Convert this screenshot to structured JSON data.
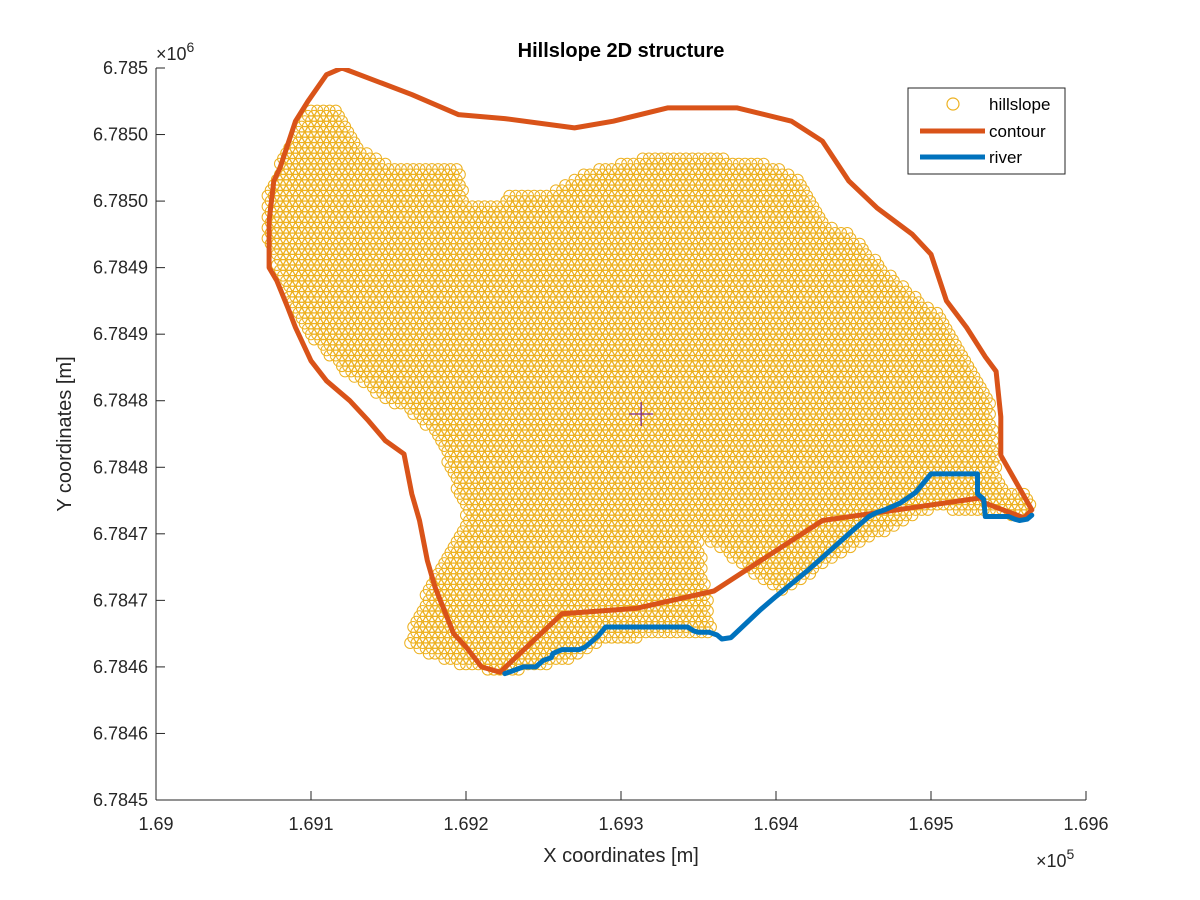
{
  "chart_data": {
    "type": "scatter",
    "title": "Hillslope 2D structure",
    "xlabel": "X coordinates [m]",
    "ylabel": "Y coordinates [m]",
    "x_exponent_label": "×10",
    "x_exponent": "5",
    "y_exponent_label": "×10",
    "y_exponent": "6",
    "xlim": [
      169000,
      169600
    ],
    "ylim": [
      6784500,
      6785050
    ],
    "xticks": [
      169000,
      169100,
      169200,
      169300,
      169400,
      169500,
      169600
    ],
    "xtick_labels": [
      "1.69",
      "1.691",
      "1.692",
      "1.693",
      "1.694",
      "1.695",
      "1.696"
    ],
    "yticks": [
      6784500,
      6784550,
      6784600,
      6784650,
      6784700,
      6784750,
      6784800,
      6784850,
      6784900,
      6784950,
      6785000,
      6785050
    ],
    "ytick_labels": [
      "6.7845",
      "6.7846",
      "6.7846",
      "6.7847",
      "6.7847",
      "6.7848",
      "6.7848",
      "6.7849",
      "6.7849",
      "6.7850",
      "6.7850",
      "6.785"
    ],
    "grid": false,
    "legend_position": "top-right",
    "colors": {
      "hillslope": "#EDB120",
      "contour": "#D95319",
      "river": "#0072BD",
      "centroid": "#7E2F8E",
      "axes": "#262626"
    },
    "series": [
      {
        "name": "hillslope",
        "kind": "markers",
        "marker": "circle",
        "spacing": 4,
        "region_polygon": [
          [
            169072,
            6784955
          ],
          [
            169072,
            6784922
          ],
          [
            169078,
            6784900
          ],
          [
            169083,
            6784884
          ],
          [
            169092,
            6784860
          ],
          [
            169106,
            6784840
          ],
          [
            169125,
            6784818
          ],
          [
            169146,
            6784803
          ],
          [
            169162,
            6784793
          ],
          [
            169175,
            6784780
          ],
          [
            169187,
            6784757
          ],
          [
            169196,
            6784726
          ],
          [
            169200,
            6784711
          ],
          [
            169196,
            6784701
          ],
          [
            169180,
            6784670
          ],
          [
            169168,
            6784638
          ],
          [
            169162,
            6784617
          ],
          [
            169174,
            6784610
          ],
          [
            169200,
            6784600
          ],
          [
            169225,
            6784596
          ],
          [
            169246,
            6784600
          ],
          [
            169268,
            6784605
          ],
          [
            169290,
            6784621
          ],
          [
            169360,
            6784624
          ],
          [
            169401,
            6784653
          ],
          [
            169440,
            6784684
          ],
          [
            169500,
            6784719
          ],
          [
            169535,
            6784716
          ],
          [
            169549,
            6784714
          ],
          [
            169564,
            6784714
          ],
          [
            169565,
            6784722
          ],
          [
            169561,
            6784730
          ],
          [
            169549,
            6784733
          ],
          [
            169544,
            6784745
          ],
          [
            169540,
            6784783
          ],
          [
            169538,
            6784800
          ],
          [
            169528,
            6784819
          ],
          [
            169518,
            6784845
          ],
          [
            169508,
            6784864
          ],
          [
            169485,
            6784883
          ],
          [
            169470,
            6784900
          ],
          [
            169447,
            6784926
          ],
          [
            169430,
            6784935
          ],
          [
            169418,
            6784965
          ],
          [
            169400,
            6784977
          ],
          [
            169340,
            6784986
          ],
          [
            169300,
            6784980
          ],
          [
            169270,
            6784968
          ],
          [
            169250,
            6784955
          ],
          [
            169227,
            6784956
          ],
          [
            169220,
            6784947
          ],
          [
            169200,
            6784950
          ],
          [
            169196,
            6784975
          ],
          [
            169173,
            6784978
          ],
          [
            169150,
            6784977
          ],
          [
            169130,
            6784992
          ],
          [
            169120,
            6785018
          ],
          [
            169100,
            6785022
          ],
          [
            169087,
            6785000
          ],
          [
            169080,
            6784980
          ]
        ],
        "excluded_polygon": [
          [
            169350,
            6784700
          ],
          [
            169385,
            6784670
          ],
          [
            169421,
            6784642
          ],
          [
            169475,
            6784697
          ],
          [
            169493,
            6784712
          ],
          [
            169500,
            6784711
          ],
          [
            169510,
            6784700
          ],
          [
            169530,
            6784700
          ],
          [
            169537,
            6784688
          ],
          [
            169540,
            6784680
          ],
          [
            169562,
            6784676
          ],
          [
            169570,
            6784660
          ],
          [
            169540,
            6784652
          ],
          [
            169430,
            6784650
          ],
          [
            169360,
            6784620
          ]
        ],
        "excluded_polygon_2": [
          [
            169115,
            6785020
          ],
          [
            169130,
            6784995
          ],
          [
            169150,
            6784982
          ],
          [
            169196,
            6784982
          ],
          [
            169223,
            6784962
          ],
          [
            169260,
            6784962
          ],
          [
            169278,
            6784972
          ],
          [
            169340,
            6784992
          ],
          [
            169400,
            6784992
          ],
          [
            169419,
            6784978
          ],
          [
            169420,
            6785010
          ],
          [
            169330,
            6785012
          ],
          [
            169270,
            6785000
          ],
          [
            169196,
            6785010
          ],
          [
            169125,
            6785032
          ]
        ]
      },
      {
        "name": "contour",
        "kind": "line",
        "x": [
          169222,
          169210,
          169200,
          169192,
          169180,
          169175,
          169170,
          169165,
          169160,
          169148,
          169137,
          169125,
          169110,
          169100,
          169090,
          169085,
          169078,
          169073,
          169073,
          169076,
          169080,
          169090,
          169098,
          169110,
          169120,
          169165,
          169195,
          169225,
          169270,
          169295,
          169330,
          169375,
          169410,
          169430,
          169447,
          169465,
          169488,
          169500,
          169510,
          169523,
          169535,
          169542,
          169545,
          169545,
          169565,
          169560,
          169535,
          169532,
          169430,
          169360,
          169310,
          169262,
          169222
        ],
        "y": [
          6784596,
          6784600,
          6784615,
          6784625,
          6784660,
          6784680,
          6784710,
          6784730,
          6784760,
          6784770,
          6784785,
          6784800,
          6784815,
          6784830,
          6784855,
          6784870,
          6784890,
          6784900,
          6784935,
          6784965,
          6784975,
          6785010,
          6785025,
          6785045,
          6785050,
          6785030,
          6785015,
          6785012,
          6785005,
          6785010,
          6785020,
          6785020,
          6785010,
          6784995,
          6784965,
          6784945,
          6784925,
          6784910,
          6784875,
          6784855,
          6784833,
          6784822,
          6784788,
          6784759,
          6784718,
          6784712,
          6784723,
          6784727,
          6784710,
          6784657,
          6784644,
          6784640,
          6784596
        ]
      },
      {
        "name": "river",
        "kind": "line",
        "x": [
          169225,
          169230,
          169237,
          169245,
          169248,
          169250,
          169255,
          169256,
          169262,
          169270,
          169273,
          169277,
          169285,
          169288,
          169290,
          169300,
          169343,
          169347,
          169350,
          169357,
          169362,
          169365,
          169371,
          169390,
          169400,
          169420,
          169450,
          169460,
          169465,
          169470,
          169480,
          169490,
          169500,
          169530,
          169530,
          169534,
          169535,
          169550,
          169554,
          169557,
          169562,
          169565
        ],
        "y": [
          6784595,
          6784597,
          6784600,
          6784600,
          6784603,
          6784605,
          6784607,
          6784610,
          6784613,
          6784613,
          6784613,
          6784615,
          6784623,
          6784627,
          6784630,
          6784630,
          6784630,
          6784627,
          6784626,
          6784626,
          6784624,
          6784621,
          6784622,
          6784643,
          6784653,
          6784672,
          6784703,
          6784713,
          6784716,
          6784718,
          6784723,
          6784731,
          6784745,
          6784745,
          6784730,
          6784726,
          6784713,
          6784713,
          6784711,
          6784710,
          6784711,
          6784714
        ]
      }
    ],
    "centroid_marker": {
      "symbol": "+",
      "x": 169313,
      "y": 6784790
    },
    "legend": [
      {
        "name": "hillslope",
        "marker": "circle"
      },
      {
        "name": "contour",
        "marker": "line"
      },
      {
        "name": "river",
        "marker": "line"
      }
    ]
  }
}
